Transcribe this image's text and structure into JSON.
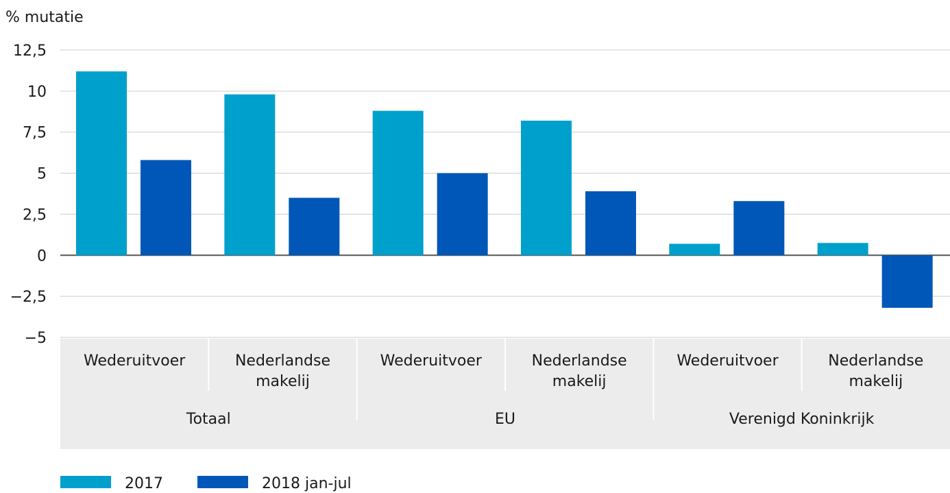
{
  "chart_data": {
    "type": "bar",
    "ylabel": "% mutatie",
    "ylim": [
      -5,
      12.5
    ],
    "yticks": [
      12.5,
      10,
      7.5,
      5,
      2.5,
      0,
      -2.5,
      -5
    ],
    "ytick_labels": [
      "12,5",
      "10",
      "7,5",
      "5",
      "2,5",
      "0",
      "−2,5",
      "−5"
    ],
    "grid": true,
    "legend_position": "bottom-left",
    "groups": [
      {
        "label": "Totaal",
        "categories": [
          [
            "Wederuitvoer"
          ],
          [
            "Nederlandse",
            "makelij"
          ]
        ]
      },
      {
        "label": "EU",
        "categories": [
          [
            "Wederuitvoer"
          ],
          [
            "Nederlandse",
            "makelij"
          ]
        ]
      },
      {
        "label": "Verenigd Koninkrijk",
        "categories": [
          [
            "Wederuitvoer"
          ],
          [
            "Nederlandse",
            "makelij"
          ]
        ]
      }
    ],
    "series": [
      {
        "name": "2017",
        "color": "#00a0cc",
        "values": [
          11.2,
          9.8,
          8.8,
          8.2,
          0.7,
          0.75
        ]
      },
      {
        "name": "2018 jan-jul",
        "color": "#0057b8",
        "values": [
          5.8,
          3.5,
          5.0,
          3.9,
          3.3,
          -3.2
        ]
      }
    ]
  }
}
